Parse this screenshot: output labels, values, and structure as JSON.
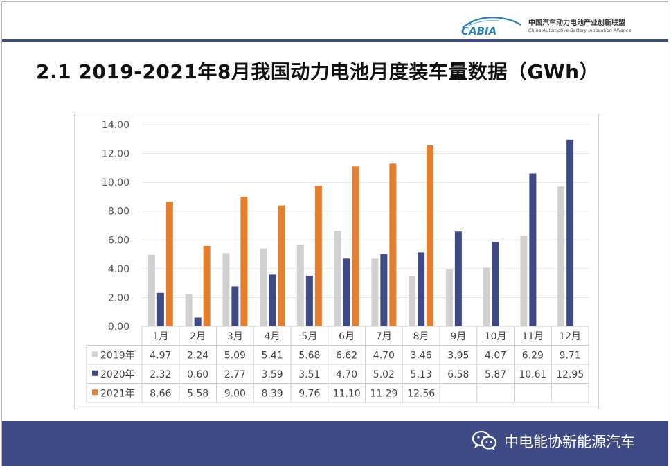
{
  "header": {
    "logo_text": "CABIA",
    "org_cn": "中国汽车动力电池产业创新联盟",
    "org_en": "China Automotive Battery Innovation Alliance"
  },
  "title": "2.1 2019-2021年8月我国动力电池月度装车量数据（GWh）",
  "chart_data": {
    "type": "bar",
    "title": "2.1 2019-2021年8月我国动力电池月度装车量数据（GWh）",
    "categories": [
      "1月",
      "2月",
      "3月",
      "4月",
      "5月",
      "6月",
      "7月",
      "8月",
      "9月",
      "10月",
      "11月",
      "12月"
    ],
    "series": [
      {
        "name": "2019年",
        "color": "#d0d0d0",
        "values": [
          4.97,
          2.24,
          5.09,
          5.41,
          5.68,
          6.62,
          4.7,
          3.46,
          3.95,
          4.07,
          6.29,
          9.71
        ],
        "labels": [
          "4.97",
          "2.24",
          "5.09",
          "5.41",
          "5.68",
          "6.62",
          "4.70",
          "3.46",
          "3.95",
          "4.07",
          "6.29",
          "9.71"
        ]
      },
      {
        "name": "2020年",
        "color": "#3e4a86",
        "values": [
          2.32,
          0.6,
          2.77,
          3.59,
          3.51,
          4.7,
          5.02,
          5.13,
          6.58,
          5.87,
          10.61,
          12.95
        ],
        "labels": [
          "2.32",
          "0.60",
          "2.77",
          "3.59",
          "3.51",
          "4.70",
          "5.02",
          "5.13",
          "6.58",
          "5.87",
          "10.61",
          "12.95"
        ]
      },
      {
        "name": "2021年",
        "color": "#e57f2f",
        "values": [
          8.66,
          5.58,
          9.0,
          8.39,
          9.76,
          11.1,
          11.29,
          12.56,
          null,
          null,
          null,
          null
        ],
        "labels": [
          "8.66",
          "5.58",
          "9.00",
          "8.39",
          "9.76",
          "11.10",
          "11.29",
          "12.56",
          "",
          "",
          "",
          ""
        ]
      }
    ],
    "yticks": [
      "0.00",
      "2.00",
      "4.00",
      "6.00",
      "8.00",
      "10.00",
      "12.00",
      "14.00"
    ],
    "ylim": [
      0,
      14
    ],
    "xlabel": "",
    "ylabel": "",
    "grid": true,
    "legend": "data-table-left"
  },
  "footer": {
    "watermark": "中电能协新能源汽车",
    "icon": "wechat-icon"
  }
}
